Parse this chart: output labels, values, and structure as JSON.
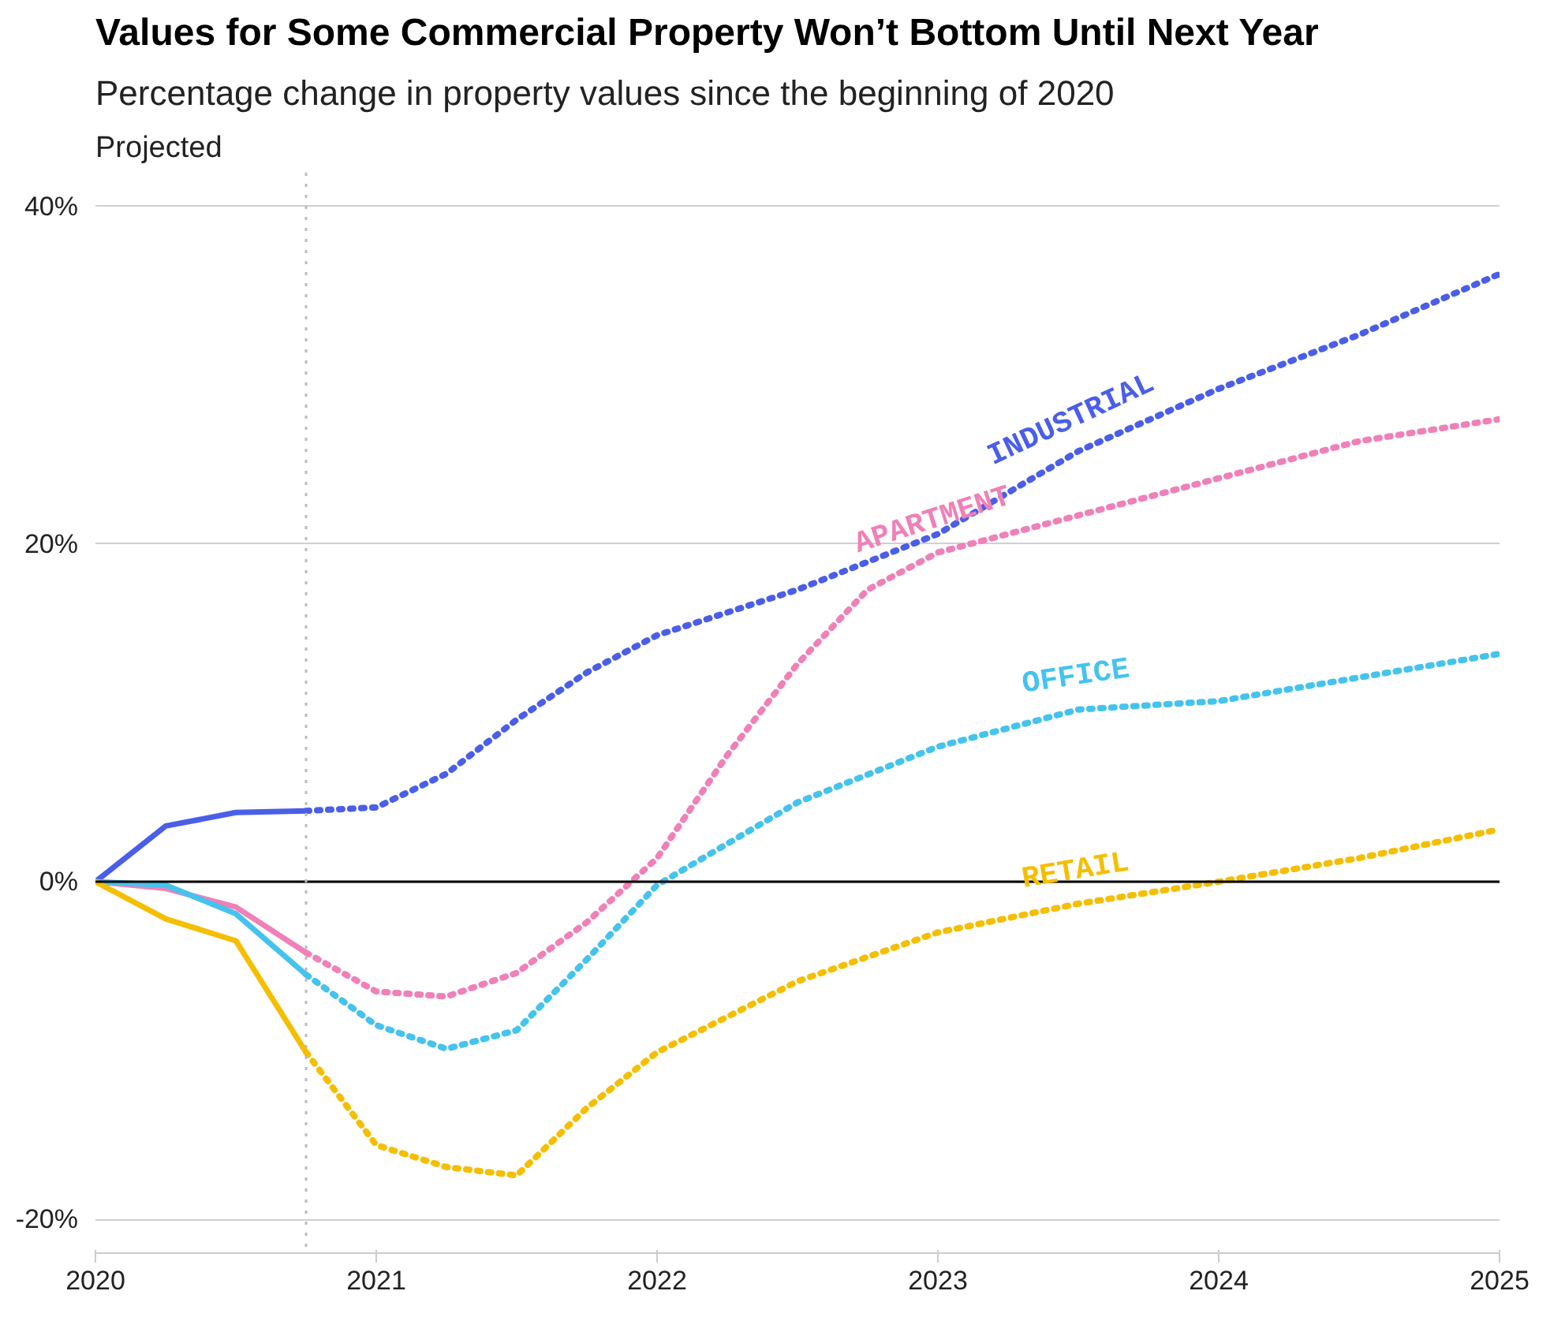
{
  "chart_data": {
    "type": "line",
    "title": "Values for Some Commercial Property Won’t Bottom Until Next Year",
    "subtitle": "Percentage change in property values since the beginning of 2020",
    "annotations": [
      "Projected"
    ],
    "xlim": [
      2020,
      2025
    ],
    "xticks": [
      2020,
      2021,
      2022,
      2023,
      2024,
      2025
    ],
    "ylim": [
      -22,
      42
    ],
    "yticks": [
      {
        "value": -20,
        "label": "-20%"
      },
      {
        "value": 0,
        "label": "0%"
      },
      {
        "value": 20,
        "label": "20%"
      },
      {
        "value": 40,
        "label": "40%"
      }
    ],
    "grid": "y",
    "marker": "none",
    "ref_lines": [
      {
        "axis": "y",
        "value": 0,
        "color": "#000000",
        "line_style": "solid"
      },
      {
        "axis": "x",
        "value": 2020.75,
        "color": "#bbbbbb",
        "line_style": "dotted"
      }
    ],
    "series": [
      {
        "color": "#4a5ee8",
        "line_style": "solid",
        "x": [
          2020,
          2020.25,
          2020.5,
          2020.75
        ],
        "values": [
          0,
          3.3,
          4.1,
          4.2
        ]
      },
      {
        "color": "#f080b8",
        "line_style": "solid",
        "x": [
          2020,
          2020.25,
          2020.5,
          2020.75
        ],
        "values": [
          0,
          -0.4,
          -1.5,
          -4.2
        ]
      },
      {
        "color": "#45c3ee",
        "line_style": "solid",
        "x": [
          2020,
          2020.25,
          2020.5,
          2020.75
        ],
        "values": [
          0,
          -0.2,
          -1.9,
          -5.5
        ]
      },
      {
        "color": "#f5be00",
        "line_style": "solid",
        "x": [
          2020,
          2020.25,
          2020.5,
          2020.75
        ],
        "values": [
          0,
          -2.2,
          -3.5,
          -10.1
        ]
      },
      {
        "name": "INDUSTRIAL",
        "color": "#4a5ee8",
        "line_style": "dotted",
        "x": [
          2020.75,
          2021,
          2021.25,
          2021.5,
          2021.75,
          2022,
          2022.5,
          2023,
          2023.5,
          2024,
          2024.5,
          2025
        ],
        "values": [
          4.2,
          4.4,
          6.4,
          9.6,
          12.4,
          14.6,
          17.3,
          20.6,
          25.5,
          29.2,
          32.4,
          36.0
        ]
      },
      {
        "name": "APARTMENT",
        "color": "#f080b8",
        "line_style": "dotted",
        "x": [
          2020.75,
          2021,
          2021.25,
          2021.5,
          2021.75,
          2022,
          2022.25,
          2022.5,
          2022.75,
          2023,
          2023.5,
          2024,
          2024.5,
          2025
        ],
        "values": [
          -4.2,
          -6.5,
          -6.8,
          -5.4,
          -2.4,
          1.4,
          7.5,
          12.9,
          17.3,
          19.5,
          21.7,
          23.9,
          26.1,
          27.4
        ]
      },
      {
        "name": "OFFICE",
        "color": "#45c3ee",
        "line_style": "dotted",
        "x": [
          2020.75,
          2021,
          2021.25,
          2021.5,
          2021.75,
          2022,
          2022.5,
          2023,
          2023.5,
          2024,
          2024.5,
          2025
        ],
        "values": [
          -5.5,
          -8.5,
          -9.9,
          -8.8,
          -4.6,
          -0.2,
          4.7,
          8.0,
          10.2,
          10.7,
          12.1,
          13.5
        ]
      },
      {
        "name": "RETAIL",
        "color": "#f5be00",
        "line_style": "dotted",
        "x": [
          2020.75,
          2021,
          2021.25,
          2021.5,
          2021.75,
          2022,
          2022.5,
          2023,
          2023.5,
          2024,
          2024.5,
          2025
        ],
        "values": [
          -10.1,
          -15.6,
          -16.9,
          -17.4,
          -13.4,
          -10.1,
          -5.9,
          -3.0,
          -1.3,
          0,
          1.4,
          3.1
        ]
      }
    ]
  }
}
